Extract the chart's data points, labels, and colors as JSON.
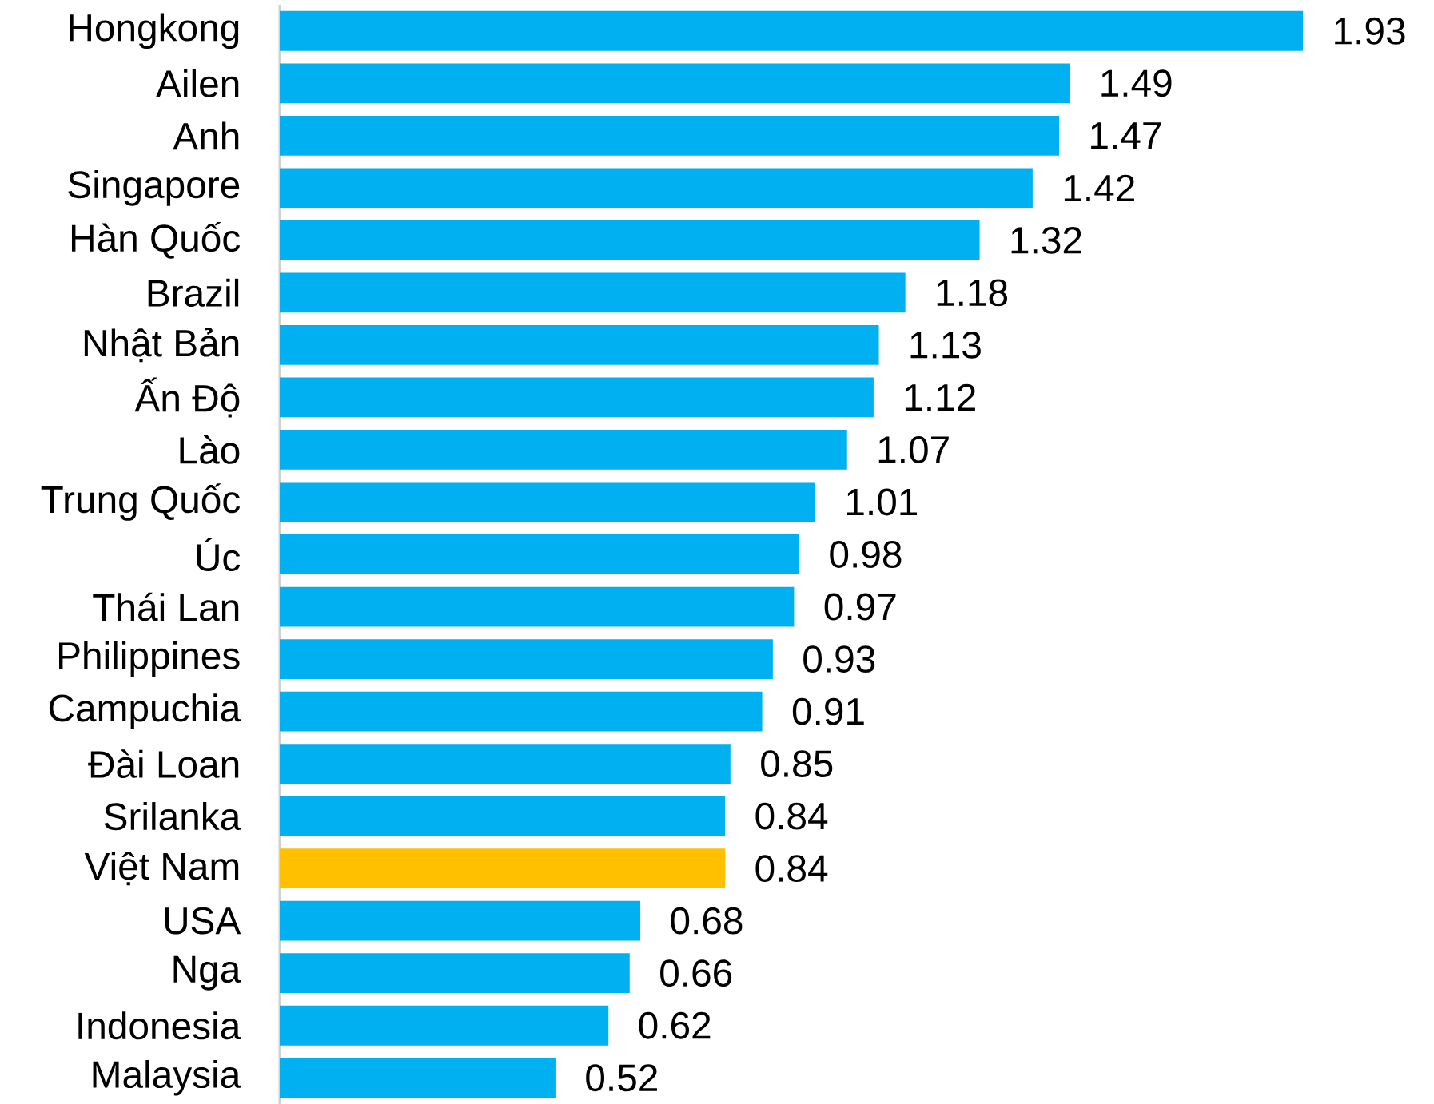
{
  "chart_data": {
    "type": "bar",
    "orientation": "horizontal",
    "categories": [
      "Hongkong",
      "Ailen",
      "Anh",
      "Singapore",
      "Hàn Quốc",
      "Brazil",
      "Nhật Bản",
      "Ấn Độ",
      "Lào",
      "Trung Quốc",
      "Úc",
      "Thái Lan",
      "Philippines",
      "Campuchia",
      "Đài Loan",
      "Srilanka",
      "Việt Nam",
      "USA",
      "Nga",
      "Indonesia",
      "Malaysia"
    ],
    "values": [
      1.93,
      1.49,
      1.47,
      1.42,
      1.32,
      1.18,
      1.13,
      1.12,
      1.07,
      1.01,
      0.98,
      0.97,
      0.93,
      0.91,
      0.85,
      0.84,
      0.84,
      0.68,
      0.66,
      0.62,
      0.52
    ],
    "colors": [
      "#00b0f0",
      "#00b0f0",
      "#00b0f0",
      "#00b0f0",
      "#00b0f0",
      "#00b0f0",
      "#00b0f0",
      "#00b0f0",
      "#00b0f0",
      "#00b0f0",
      "#00b0f0",
      "#00b0f0",
      "#00b0f0",
      "#00b0f0",
      "#00b0f0",
      "#00b0f0",
      "#ffc000",
      "#00b0f0",
      "#00b0f0",
      "#00b0f0",
      "#00b0f0"
    ],
    "data_labels": true,
    "tick_labels": "y"
  }
}
